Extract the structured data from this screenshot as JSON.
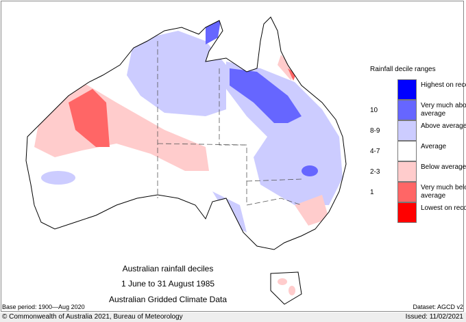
{
  "map": {
    "title_lines": [
      "Australian rainfall deciles",
      "1 June to 31 August 1985",
      "Australian Gridded Climate Data"
    ],
    "base_period": "Base period: 1900—Aug 2020",
    "dataset": "Dataset: AGCD v2"
  },
  "legend": {
    "title": "Rainfall decile ranges",
    "items": [
      {
        "decile": "",
        "label": "Highest on record",
        "color": "#0000ff"
      },
      {
        "decile": "10",
        "label": "Very much above average",
        "color": "#6666ff"
      },
      {
        "decile": "8-9",
        "label": "Above average",
        "color": "#ccccff"
      },
      {
        "decile": "4-7",
        "label": "Average",
        "color": "#ffffff"
      },
      {
        "decile": "2-3",
        "label": "Below average",
        "color": "#ffcccc"
      },
      {
        "decile": "1",
        "label": "Very much below average",
        "color": "#ff6666"
      },
      {
        "decile": "",
        "label": "Lowest on record",
        "color": "#ff0000"
      }
    ]
  },
  "footer": {
    "copyright": "© Commonwealth of Australia 2021, Bureau of Meteorology",
    "issued": "Issued: 11/02/2021"
  }
}
